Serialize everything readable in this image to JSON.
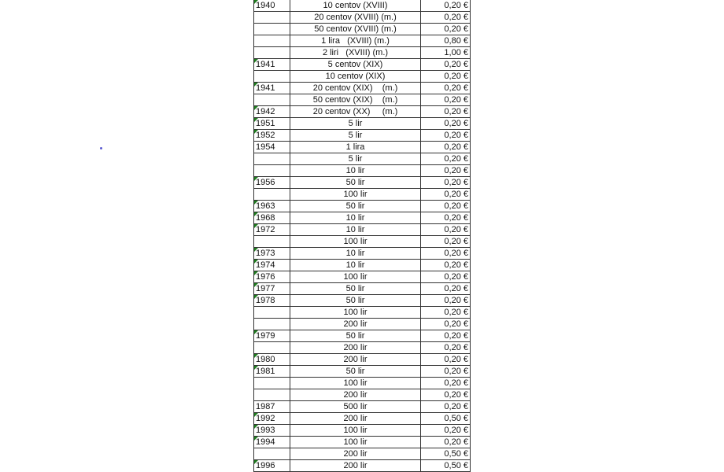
{
  "rows": [
    {
      "year": "1940",
      "coin": "10 centov (XVIII)",
      "price": "0,20 €",
      "flag": true
    },
    {
      "year": "",
      "coin": "20 centov (XVIII) (m.)",
      "price": "0,20 €",
      "flag": false
    },
    {
      "year": "",
      "coin": "50 centov (XVIII) (m.)",
      "price": "0,20 €",
      "flag": false
    },
    {
      "year": "",
      "coin": "1 lira   (XVIII) (m.)",
      "price": "0,80 €",
      "flag": false
    },
    {
      "year": "",
      "coin": "2 liri   (XVIII) (m.)",
      "price": "1,00 €",
      "flag": false
    },
    {
      "year": "1941",
      "coin": "5 centov (XIX)",
      "price": "0,20 €",
      "flag": true
    },
    {
      "year": "",
      "coin": "10 centov (XIX)",
      "price": "0,20 €",
      "flag": false
    },
    {
      "year": "1941",
      "coin": "20 centov (XIX)    (m.)",
      "price": "0,20 €",
      "flag": true
    },
    {
      "year": "",
      "coin": "50 centov (XIX)    (m.)",
      "price": "0,20 €",
      "flag": false
    },
    {
      "year": "1942",
      "coin": "20 centov (XX)     (m.)",
      "price": "0,20 €",
      "flag": true
    },
    {
      "year": "1951",
      "coin": "5 lir",
      "price": "0,20 €",
      "flag": true
    },
    {
      "year": "1952",
      "coin": "5 lir",
      "price": "0,20 €",
      "flag": true
    },
    {
      "year": "1954",
      "coin": "1 lira",
      "price": "0,20 €",
      "flag": false
    },
    {
      "year": "",
      "coin": "5 lir",
      "price": "0,20 €",
      "flag": false
    },
    {
      "year": "",
      "coin": "10 lir",
      "price": "0,20 €",
      "flag": false
    },
    {
      "year": "1956",
      "coin": "50 lir",
      "price": "0,20 €",
      "flag": true
    },
    {
      "year": "",
      "coin": "100 lir",
      "price": "0,20 €",
      "flag": false
    },
    {
      "year": "1963",
      "coin": "50 lir",
      "price": "0,20 €",
      "flag": true
    },
    {
      "year": "1968",
      "coin": "10 lir",
      "price": "0,20 €",
      "flag": true
    },
    {
      "year": "1972",
      "coin": "10 lir",
      "price": "0,20 €",
      "flag": true
    },
    {
      "year": "",
      "coin": "100 lir",
      "price": "0,20 €",
      "flag": false
    },
    {
      "year": "1973",
      "coin": "10 lir",
      "price": "0,20 €",
      "flag": true
    },
    {
      "year": "1974",
      "coin": "10 lir",
      "price": "0,20 €",
      "flag": true
    },
    {
      "year": "1976",
      "coin": "100 lir",
      "price": "0,20 €",
      "flag": true
    },
    {
      "year": "1977",
      "coin": "50 lir",
      "price": "0,20 €",
      "flag": true
    },
    {
      "year": "1978",
      "coin": "50 lir",
      "price": "0,20 €",
      "flag": true
    },
    {
      "year": "",
      "coin": "100 lir",
      "price": "0,20 €",
      "flag": false
    },
    {
      "year": "",
      "coin": "200 lir",
      "price": "0,20 €",
      "flag": false
    },
    {
      "year": "1979",
      "coin": "50 lir",
      "price": "0,20 €",
      "flag": true
    },
    {
      "year": "",
      "coin": "200 lir",
      "price": "0,20 €",
      "flag": false
    },
    {
      "year": "1980",
      "coin": "200 lir",
      "price": "0,20 €",
      "flag": true
    },
    {
      "year": "1981",
      "coin": "50 lir",
      "price": "0,20 €",
      "flag": true
    },
    {
      "year": "",
      "coin": "100 lir",
      "price": "0,20 €",
      "flag": false
    },
    {
      "year": "",
      "coin": "200 lir",
      "price": "0,20 €",
      "flag": false
    },
    {
      "year": "1987",
      "coin": "500 lir",
      "price": "0,20 €",
      "flag": false
    },
    {
      "year": "1992",
      "coin": "200 lir",
      "price": "0,50 €",
      "flag": true
    },
    {
      "year": "1993",
      "coin": "100 lir",
      "price": "0,20 €",
      "flag": true
    },
    {
      "year": "1994",
      "coin": "100 lir",
      "price": "0,20 €",
      "flag": true
    },
    {
      "year": "",
      "coin": "200 lir",
      "price": "0,50 €",
      "flag": false
    },
    {
      "year": "1996",
      "coin": "200 lir",
      "price": "0,50 €",
      "flag": true
    }
  ],
  "colors": {
    "flag": "#1f7a1f",
    "dot": "#5a5ad0"
  }
}
